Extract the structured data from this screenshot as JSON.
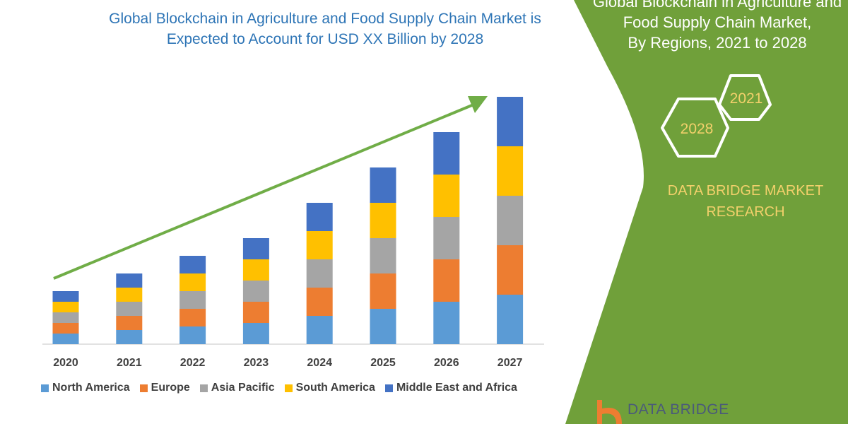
{
  "title": "Global Blockchain in Agriculture and Food Supply Chain Market is Expected to Account for USD XX Billion by 2028",
  "side_panel": {
    "title_lines": [
      "Global Blockchain in Agriculture and",
      "Food Supply Chain Market,",
      "By Regions, 2021 to 2028"
    ],
    "hex_years": [
      "2021",
      "2028"
    ],
    "brand_lines": [
      "DATA BRIDGE MARKET",
      "RESEARCH"
    ],
    "logo_text": "DATA BRIDGE",
    "panel_color": "#70a03a"
  },
  "chart_data": {
    "type": "bar",
    "stacked": true,
    "title": "Global Blockchain in Agriculture and Food Supply Chain Market is Expected to Account for USD XX Billion by 2028",
    "xlabel": "",
    "ylabel": "",
    "y_axis_shown": false,
    "grid": false,
    "legend_position": "bottom",
    "trend_arrow": true,
    "trend_arrow_color": "#70ad47",
    "categories": [
      "2020",
      "2021",
      "2022",
      "2023",
      "2024",
      "2025",
      "2026",
      "2027"
    ],
    "series": [
      {
        "name": "North America",
        "color": "#5b9bd5",
        "values": [
          15,
          20,
          25,
          30,
          40,
          50,
          60,
          70
        ]
      },
      {
        "name": "Europe",
        "color": "#ed7d31",
        "values": [
          15,
          20,
          25,
          30,
          40,
          50,
          60,
          70
        ]
      },
      {
        "name": "Asia Pacific",
        "color": "#a5a5a5",
        "values": [
          15,
          20,
          25,
          30,
          40,
          50,
          60,
          70
        ]
      },
      {
        "name": "South America",
        "color": "#ffc000",
        "values": [
          15,
          20,
          25,
          30,
          40,
          50,
          60,
          70
        ]
      },
      {
        "name": "Middle East and Africa",
        "color": "#4472c4",
        "values": [
          15,
          20,
          25,
          30,
          40,
          50,
          60,
          70
        ]
      }
    ]
  }
}
